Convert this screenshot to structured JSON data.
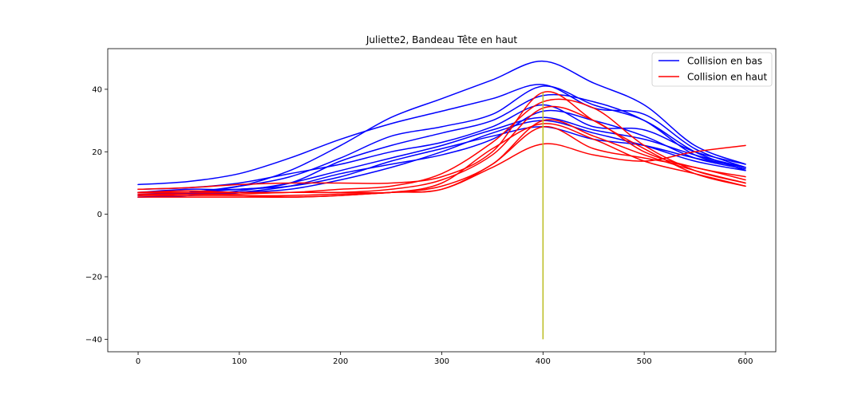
{
  "chart_data": {
    "type": "line",
    "title": "Juliette2, Bandeau Tête en haut",
    "xlabel": "",
    "ylabel": "",
    "xlim": [
      -30,
      630
    ],
    "ylim": [
      -44,
      53
    ],
    "xticks": [
      0,
      100,
      200,
      300,
      400,
      500,
      600
    ],
    "yticks": [
      -40,
      -20,
      0,
      20,
      40
    ],
    "grid": false,
    "legend_position": "top-right",
    "legend": [
      {
        "label": "Collision en bas",
        "color": "#0000ff"
      },
      {
        "label": "Collision en haut",
        "color": "#ff0000"
      }
    ],
    "x": [
      0,
      50,
      100,
      150,
      200,
      250,
      300,
      350,
      400,
      450,
      500,
      550,
      600
    ],
    "series": [
      {
        "group": "Collision en bas",
        "color": "#0000ff",
        "values": [
          6,
          7,
          9,
          14,
          22,
          31,
          37,
          43,
          49,
          42,
          35,
          22,
          16
        ]
      },
      {
        "group": "Collision en bas",
        "color": "#0000ff",
        "values": [
          9.5,
          10.5,
          13,
          18,
          24,
          29,
          33,
          37,
          41.5,
          34,
          32,
          21,
          15
        ]
      },
      {
        "group": "Collision en bas",
        "color": "#0000ff",
        "values": [
          6,
          7,
          9,
          12,
          18,
          25,
          28,
          32,
          41,
          35,
          30,
          20,
          14
        ]
      },
      {
        "group": "Collision en bas",
        "color": "#0000ff",
        "values": [
          7,
          8,
          8,
          10,
          17,
          22,
          26,
          30,
          38,
          36,
          30,
          19,
          15
        ]
      },
      {
        "group": "Collision en bas",
        "color": "#0000ff",
        "values": [
          8,
          8.5,
          10,
          13,
          16,
          20,
          23,
          28,
          35,
          28,
          27,
          20,
          16
        ]
      },
      {
        "group": "Collision en bas",
        "color": "#0000ff",
        "values": [
          5.5,
          6,
          7.5,
          10,
          14,
          18,
          22,
          27,
          31,
          27,
          24,
          19,
          15
        ]
      },
      {
        "group": "Collision en bas",
        "color": "#0000ff",
        "values": [
          7,
          7,
          8,
          9,
          12,
          17,
          21,
          25,
          28,
          24,
          22,
          18,
          15
        ]
      },
      {
        "group": "Collision en bas",
        "color": "#0000ff",
        "values": [
          6.5,
          6.8,
          7,
          8,
          11,
          15,
          20,
          26,
          30,
          26,
          22,
          17,
          14
        ]
      },
      {
        "group": "Collision en bas",
        "color": "#0000ff",
        "values": [
          5.5,
          6,
          7,
          9,
          13,
          16,
          19,
          24,
          33,
          30,
          25,
          18,
          14.5
        ]
      },
      {
        "group": "Collision en haut",
        "color": "#ff0000",
        "values": [
          8,
          8.5,
          9.5,
          10,
          10,
          10,
          12,
          20,
          39,
          30,
          21,
          13,
          9
        ]
      },
      {
        "group": "Collision en haut",
        "color": "#ff0000",
        "values": [
          7,
          7,
          7,
          7,
          8,
          9,
          13,
          23,
          36,
          34,
          22,
          14,
          10
        ]
      },
      {
        "group": "Collision en haut",
        "color": "#ff0000",
        "values": [
          6,
          6.5,
          6.5,
          7,
          7,
          8,
          11,
          19,
          34,
          30,
          20,
          15,
          12
        ]
      },
      {
        "group": "Collision en haut",
        "color": "#ff0000",
        "values": [
          7,
          7.5,
          7,
          7,
          7,
          7,
          9,
          16,
          30,
          25,
          19,
          14,
          10
        ]
      },
      {
        "group": "Collision en haut",
        "color": "#ff0000",
        "values": [
          6.5,
          6.5,
          6,
          6,
          6.5,
          7,
          10,
          21,
          29,
          24,
          17,
          13,
          9
        ]
      },
      {
        "group": "Collision en haut",
        "color": "#ff0000",
        "values": [
          6,
          6,
          6,
          5.5,
          6,
          7,
          8,
          16,
          28,
          21,
          18,
          15,
          11
        ]
      },
      {
        "group": "Collision en haut",
        "color": "#ff0000",
        "values": [
          5.5,
          5.5,
          5.5,
          5.5,
          6,
          7,
          8,
          15,
          22.5,
          19,
          17,
          20,
          22
        ]
      }
    ],
    "vertical_line": {
      "x": 400,
      "y_from": -40,
      "y_to": 39,
      "color": "#bcbd22"
    }
  }
}
